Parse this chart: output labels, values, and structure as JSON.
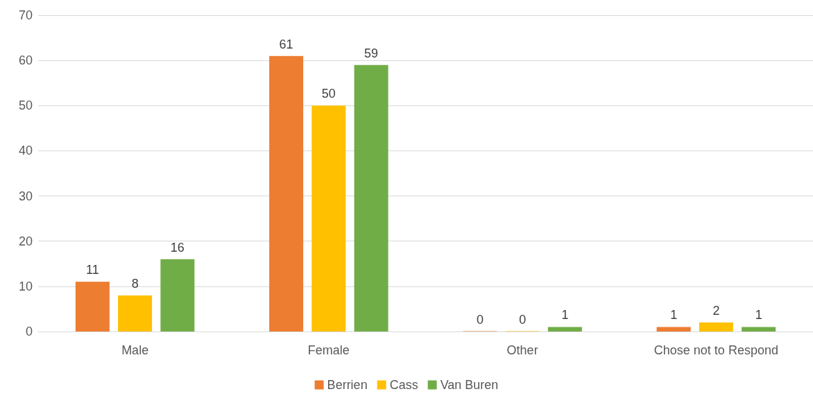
{
  "chart_data": {
    "type": "bar",
    "categories": [
      "Male",
      "Female",
      "Other",
      "Chose not to Respond"
    ],
    "series": [
      {
        "name": "Berrien",
        "color": "#ed7d31",
        "values": [
          11,
          61,
          0,
          1
        ]
      },
      {
        "name": "Cass",
        "color": "#ffc000",
        "values": [
          8,
          50,
          0,
          2
        ]
      },
      {
        "name": "Van Buren",
        "color": "#70ad47",
        "values": [
          16,
          59,
          1,
          1
        ]
      }
    ],
    "ylim": [
      0,
      70
    ],
    "yticks": [
      0,
      10,
      20,
      30,
      40,
      50,
      60,
      70
    ],
    "grid": "y",
    "legend": "bottom",
    "data_labels": true
  }
}
